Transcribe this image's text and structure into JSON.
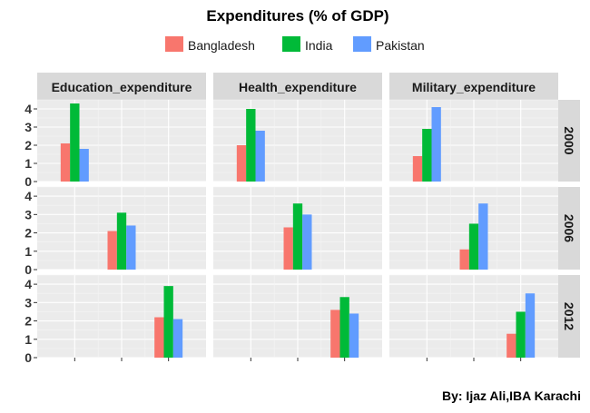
{
  "chart_data": {
    "type": "bar",
    "title": "Expenditures (% of GDP)",
    "caption": "By: Ijaz Ali,IBA Karachi",
    "legend_position": "top",
    "series": [
      {
        "name": "Bangladesh",
        "color": "#F8766D"
      },
      {
        "name": "India",
        "color": "#00BA38"
      },
      {
        "name": "Pakistan",
        "color": "#619CFF"
      }
    ],
    "facet_columns": [
      "Education_expenditure",
      "Health_expenditure",
      "Military_expenditure"
    ],
    "facet_rows": [
      "2000",
      "2006",
      "2012"
    ],
    "x_categories_count": 3,
    "ylim": [
      0,
      4.5
    ],
    "y_ticks": [
      0,
      1,
      2,
      3,
      4
    ],
    "x_tick_labels_shown": false,
    "grid": true,
    "values": {
      "2000": {
        "Education_expenditure": [
          2.1,
          4.3,
          1.8
        ],
        "Health_expenditure": [
          2.0,
          4.0,
          2.8
        ],
        "Military_expenditure": [
          1.4,
          2.9,
          4.1
        ]
      },
      "2006": {
        "Education_expenditure": [
          2.1,
          3.1,
          2.4
        ],
        "Health_expenditure": [
          2.3,
          3.6,
          3.0
        ],
        "Military_expenditure": [
          1.1,
          2.5,
          3.6
        ]
      },
      "2012": {
        "Education_expenditure": [
          2.2,
          3.9,
          2.1
        ],
        "Health_expenditure": [
          2.6,
          3.3,
          2.4
        ],
        "Military_expenditure": [
          1.3,
          2.5,
          3.5
        ]
      }
    }
  }
}
